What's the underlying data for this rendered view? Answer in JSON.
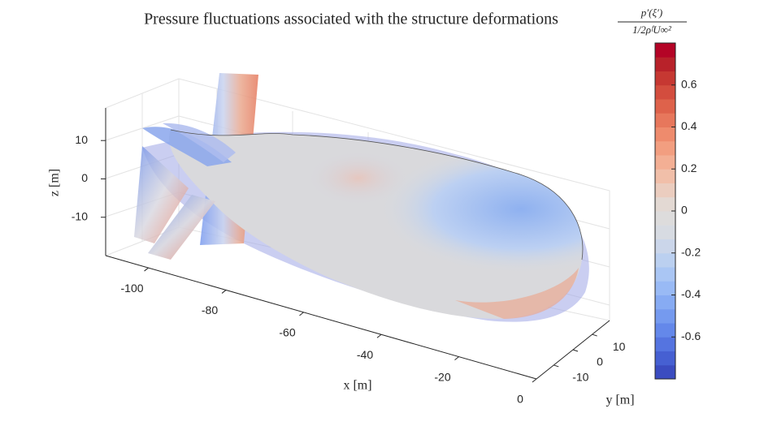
{
  "chart_data": {
    "type": "surface3d",
    "title": "Pressure fluctuations associated with the structure deformations",
    "title_fraction": {
      "numerator": "p′(ξ′)",
      "denominator": "1/2ρᶠU∞²"
    },
    "xlabel": "x [m]",
    "ylabel": "y [m]",
    "zlabel": "z [m]",
    "xlim": [
      -111,
      0
    ],
    "xticks": [
      -100,
      -80,
      -60,
      -40,
      -20,
      0
    ],
    "ylim": [
      -19,
      19
    ],
    "yticks": [
      -10,
      0,
      10
    ],
    "zlim": [
      -20,
      18.5
    ],
    "zticks": [
      -10,
      0,
      10
    ],
    "clim": [
      -0.8,
      0.8
    ],
    "cticks": [
      -0.6,
      -0.4,
      -0.2,
      0,
      0.2,
      0.4,
      0.6
    ],
    "colormap": [
      "#3b4cc0",
      "#4660d2",
      "#5574e0",
      "#6488ea",
      "#759aef",
      "#87abf3",
      "#99baf5",
      "#aac6f4",
      "#bbd0f0",
      "#cbd6ea",
      "#d7dbe2",
      "#dddcdc",
      "#e3d9d3",
      "#ebcdbf",
      "#f1bfa9",
      "#f3af94",
      "#f29e80",
      "#ee8b6d",
      "#e7775c",
      "#de624b",
      "#d34d3e",
      "#c63832",
      "#b8222a",
      "#b40426"
    ]
  }
}
